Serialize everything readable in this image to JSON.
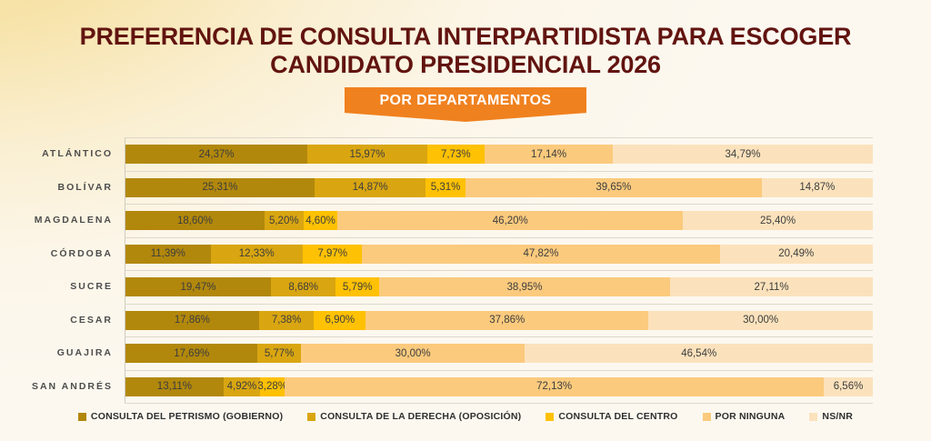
{
  "title": {
    "line1": "PREFERENCIA DE CONSULTA INTERPARTIDISTA PARA ESCOGER",
    "line2": "CANDIDATO PRESIDENCIAL 2026"
  },
  "banner": {
    "label": "POR DEPARTAMENTOS"
  },
  "theme": {
    "background_glow": "#F5DC94",
    "background_base": "#FCF8F0",
    "title_color": "#621410",
    "banner_color": "#F0811F",
    "banner_text_color": "#FFFFFF",
    "grid_line_color": "#DDD8CC",
    "axis_line_color": "#CFCABE",
    "category_label_color": "#4D4D4D",
    "value_label_color": "#3D3D3D"
  },
  "chart_data": {
    "type": "bar",
    "stacked": true,
    "orientation": "horizontal",
    "title": "PREFERENCIA DE CONSULTA INTERPARTIDISTA PARA ESCOGER CANDIDATO PRESIDENCIAL 2026",
    "subtitle": "POR DEPARTAMENTOS",
    "xlim": [
      0,
      100
    ],
    "value_unit": "%",
    "grid": true,
    "legend_position": "bottom",
    "categories": [
      "ATLÁNTICO",
      "BOLÍVAR",
      "MAGDALENA",
      "CÓRDOBA",
      "SUCRE",
      "CESAR",
      "GUAJIRA",
      "SAN ANDRÉS"
    ],
    "series": [
      {
        "name": "CONSULTA DEL PETRISMO (GOBIERNO)",
        "color": "#B2880C",
        "values": [
          24.37,
          25.31,
          18.6,
          11.39,
          19.47,
          17.86,
          17.69,
          13.11
        ],
        "labels": [
          "24,37%",
          "25,31%",
          "18,60%",
          "11,39%",
          "19,47%",
          "17,86%",
          "17,69%",
          "13,11%"
        ]
      },
      {
        "name": "CONSULTA DE LA DERECHA (OPOSICIÓN)",
        "color": "#D9A611",
        "values": [
          15.97,
          14.87,
          5.2,
          12.33,
          8.68,
          7.38,
          5.77,
          4.92
        ],
        "labels": [
          "15,97%",
          "14,87%",
          "5,20%",
          "12,33%",
          "8,68%",
          "7,38%",
          "5,77%",
          "4,92%"
        ]
      },
      {
        "name": "CONSULTA DEL CENTRO",
        "color": "#FFC103",
        "values": [
          7.73,
          5.31,
          4.6,
          7.97,
          5.79,
          6.9,
          0,
          3.28
        ],
        "labels": [
          "7,73%",
          "5,31%",
          "4,60%",
          "7,97%",
          "5,79%",
          "6,90%",
          "",
          "3,28%"
        ]
      },
      {
        "name": "POR NINGUNA",
        "color": "#FBCA7D",
        "values": [
          17.14,
          39.65,
          46.2,
          47.82,
          38.95,
          37.86,
          30.0,
          72.13
        ],
        "labels": [
          "17,14%",
          "39,65%",
          "46,20%",
          "47,82%",
          "38,95%",
          "37,86%",
          "30,00%",
          "72,13%"
        ]
      },
      {
        "name": "NS/NR",
        "color": "#FBE2BC",
        "values": [
          34.79,
          14.87,
          25.4,
          20.49,
          27.11,
          30.0,
          46.54,
          6.56
        ],
        "labels": [
          "34,79%",
          "14,87%",
          "25,40%",
          "20,49%",
          "27,11%",
          "30,00%",
          "46,54%",
          "6,56%"
        ]
      }
    ]
  }
}
